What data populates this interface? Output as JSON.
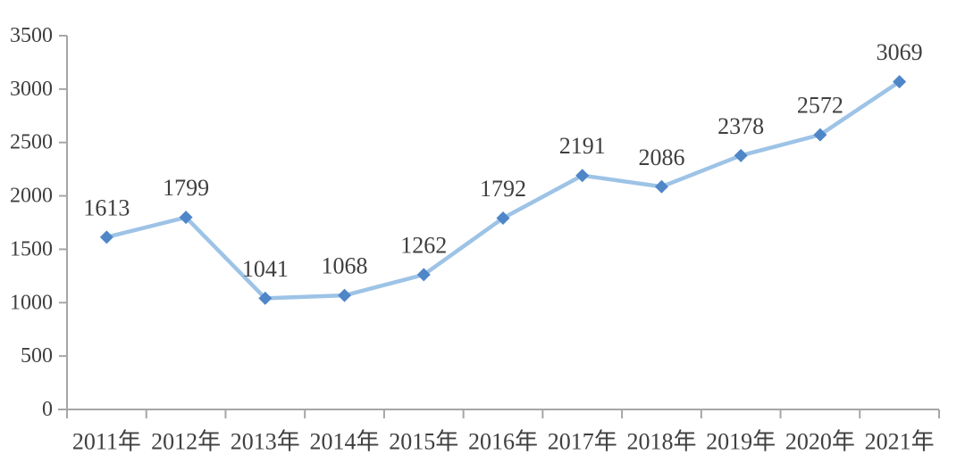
{
  "chart_data": {
    "type": "line",
    "categories": [
      "2011年",
      "2012年",
      "2013年",
      "2014年",
      "2015年",
      "2016年",
      "2017年",
      "2018年",
      "2019年",
      "2020年",
      "2021年"
    ],
    "series": [
      {
        "name": "value",
        "values": [
          1613,
          1799,
          1041,
          1068,
          1262,
          1792,
          2191,
          2086,
          2378,
          2572,
          3069
        ]
      }
    ],
    "data_labels": [
      1613,
      1799,
      1041,
      1068,
      1262,
      1792,
      2191,
      2086,
      2378,
      2572,
      3069
    ],
    "title": "",
    "xlabel": "",
    "ylabel": "",
    "ylim": [
      0,
      3500
    ],
    "ytick_step": 500,
    "ytick_labels": [
      "0",
      "500",
      "1000",
      "1500",
      "2000",
      "2500",
      "3000",
      "3500"
    ],
    "grid": false,
    "legend": null,
    "show_data_labels": true,
    "marker_shape": "diamond",
    "colors": {
      "line": "#9DC3E6",
      "marker": "#4E86C8",
      "axis": "#A6A6A6",
      "text": "#3F3F3F",
      "background": "#FFFFFF"
    }
  }
}
